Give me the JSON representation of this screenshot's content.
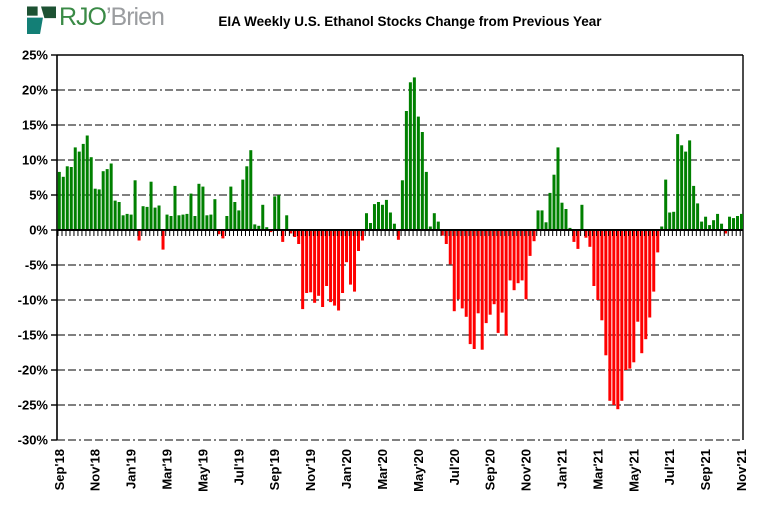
{
  "header": {
    "title": "EIA Weekly U.S. Ethanol Stocks Change from Previous Year"
  },
  "logo": {
    "icon": "rjobrien-square-logo",
    "text_primary": "RJO",
    "text_secondary": "’Brien",
    "color_primary": "#3a8a46",
    "color_secondary": "#9b9da0",
    "icon_dark_green": "#1d5233",
    "icon_teal": "#137f76"
  },
  "chart_data": {
    "type": "bar",
    "title": "EIA Weekly U.S. Ethanol Stocks Change from Previous Year",
    "xlabel": "",
    "ylabel": "",
    "frequency": "weekly",
    "grid": "horizontal-dashed",
    "legend": "none",
    "ylim": [
      -30,
      25
    ],
    "y_tick_step": 5,
    "y_tick_labels": [
      "25%",
      "20%",
      "15%",
      "10%",
      "5%",
      "0%",
      "-5%",
      "-10%",
      "-15%",
      "-20%",
      "-25%",
      "-30%"
    ],
    "x_tick_labels": [
      "Sep'18",
      "Nov'18",
      "Jan'19",
      "Mar'19",
      "May'19",
      "Jul'19",
      "Sep'19",
      "Nov'19",
      "Jan'20",
      "Mar'20",
      "May'20",
      "Jul'20",
      "Sep'20",
      "Nov'20",
      "Jan'21",
      "Mar'21",
      "May'21",
      "Jul'21",
      "Sep'21",
      "Nov'21"
    ],
    "colors": {
      "positive_bar": "#008000",
      "negative_bar": "#ff0000",
      "axis": "#000000",
      "gridline": "#000000"
    },
    "values": [
      8.3,
      7.6,
      9.1,
      9.0,
      11.8,
      11.2,
      12.3,
      13.5,
      10.4,
      5.9,
      5.8,
      8.4,
      8.7,
      9.5,
      4.2,
      4.0,
      2.1,
      2.3,
      2.2,
      7.1,
      -1.5,
      3.4,
      3.3,
      6.9,
      3.2,
      3.5,
      -2.8,
      2.2,
      2.0,
      6.3,
      2.1,
      2.2,
      2.3,
      5.2,
      2.0,
      6.6,
      6.2,
      2.1,
      2.2,
      4.4,
      -0.6,
      -1.2,
      2.0,
      6.2,
      4.0,
      2.8,
      7.2,
      9.1,
      11.4,
      0.8,
      0.6,
      3.6,
      0.4,
      -0.3,
      4.8,
      5.0,
      -1.7,
      2.1,
      -0.5,
      -1.0,
      -2.0,
      -11.3,
      -9.0,
      -8.9,
      -10.4,
      -9.4,
      -11.0,
      -8.0,
      -10.3,
      -10.8,
      -11.5,
      -9.0,
      -4.6,
      -7.8,
      -8.8,
      -3.0,
      -1.5,
      2.4,
      1.0,
      3.7,
      4.0,
      3.6,
      4.3,
      2.5,
      0.9,
      -1.4,
      7.1,
      17.0,
      21.1,
      21.8,
      16.2,
      14.0,
      8.3,
      0.5,
      2.4,
      1.2,
      -0.8,
      -2.0,
      -4.9,
      -11.6,
      -9.9,
      -11.2,
      -12.4,
      -16.3,
      -17.0,
      -11.9,
      -17.1,
      -13.3,
      -12.1,
      -10.6,
      -14.7,
      -11.8,
      -15.1,
      -7.2,
      -8.6,
      -7.6,
      -7.2,
      -9.9,
      -3.7,
      -1.6,
      2.8,
      2.8,
      1.1,
      5.3,
      7.9,
      11.8,
      3.9,
      3.0,
      0.3,
      -1.7,
      -2.7,
      3.6,
      -1.1,
      -2.4,
      -8.0,
      -10.0,
      -12.9,
      -17.9,
      -24.4,
      -25.0,
      -25.6,
      -24.4,
      -20.0,
      -19.8,
      -18.9,
      -13.1,
      -17.6,
      -15.6,
      -12.5,
      -8.8,
      -3.2,
      0.5,
      7.2,
      2.5,
      2.6,
      13.7,
      12.1,
      11.2,
      12.8,
      6.3,
      3.8,
      1.2,
      1.9,
      0.7,
      1.4,
      2.3,
      0.9,
      -0.5,
      1.9,
      1.7,
      2.0,
      2.3
    ]
  }
}
